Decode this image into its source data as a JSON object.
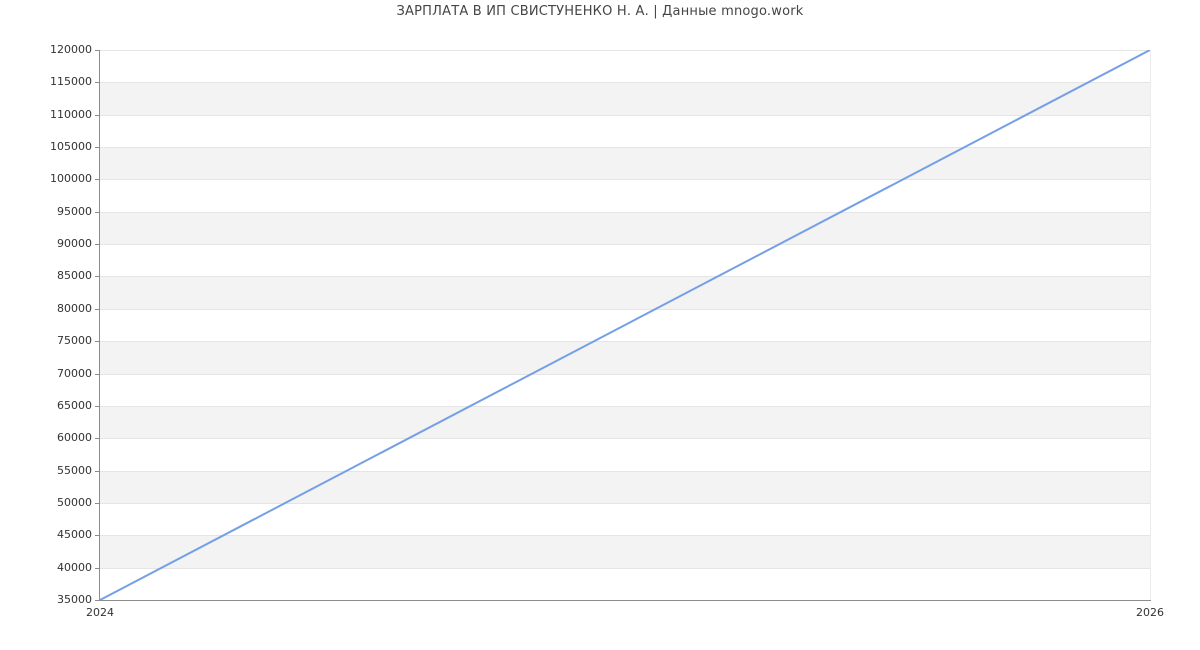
{
  "chart_data": {
    "type": "line",
    "title": "ЗАРПЛАТА В ИП СВИСТУНЕНКО Н. А. | Данные mnogo.work",
    "x": [
      2024,
      2026
    ],
    "x_tick_labels": [
      "2024",
      "2026"
    ],
    "series": [
      {
        "name": "ЗАРПЛАТА",
        "values": [
          35000,
          120000
        ]
      }
    ],
    "ylim": [
      35000,
      120000
    ],
    "y_tick_step": 5000,
    "y_tick_labels": [
      "35000",
      "40000",
      "45000",
      "50000",
      "55000",
      "60000",
      "65000",
      "70000",
      "75000",
      "80000",
      "85000",
      "90000",
      "95000",
      "100000",
      "105000",
      "110000",
      "115000",
      "120000"
    ],
    "xlabel": "",
    "ylabel": "",
    "grid": true,
    "legend_position": "none",
    "colors": {
      "line": "#75a0e6",
      "band_alt": "#f3f3f3",
      "band_base": "#ffffff",
      "gridline": "#e5e5e5",
      "axis": "#8c8c8c",
      "title_text": "#454545",
      "tick_text": "#333333",
      "background": "#ffffff"
    }
  }
}
